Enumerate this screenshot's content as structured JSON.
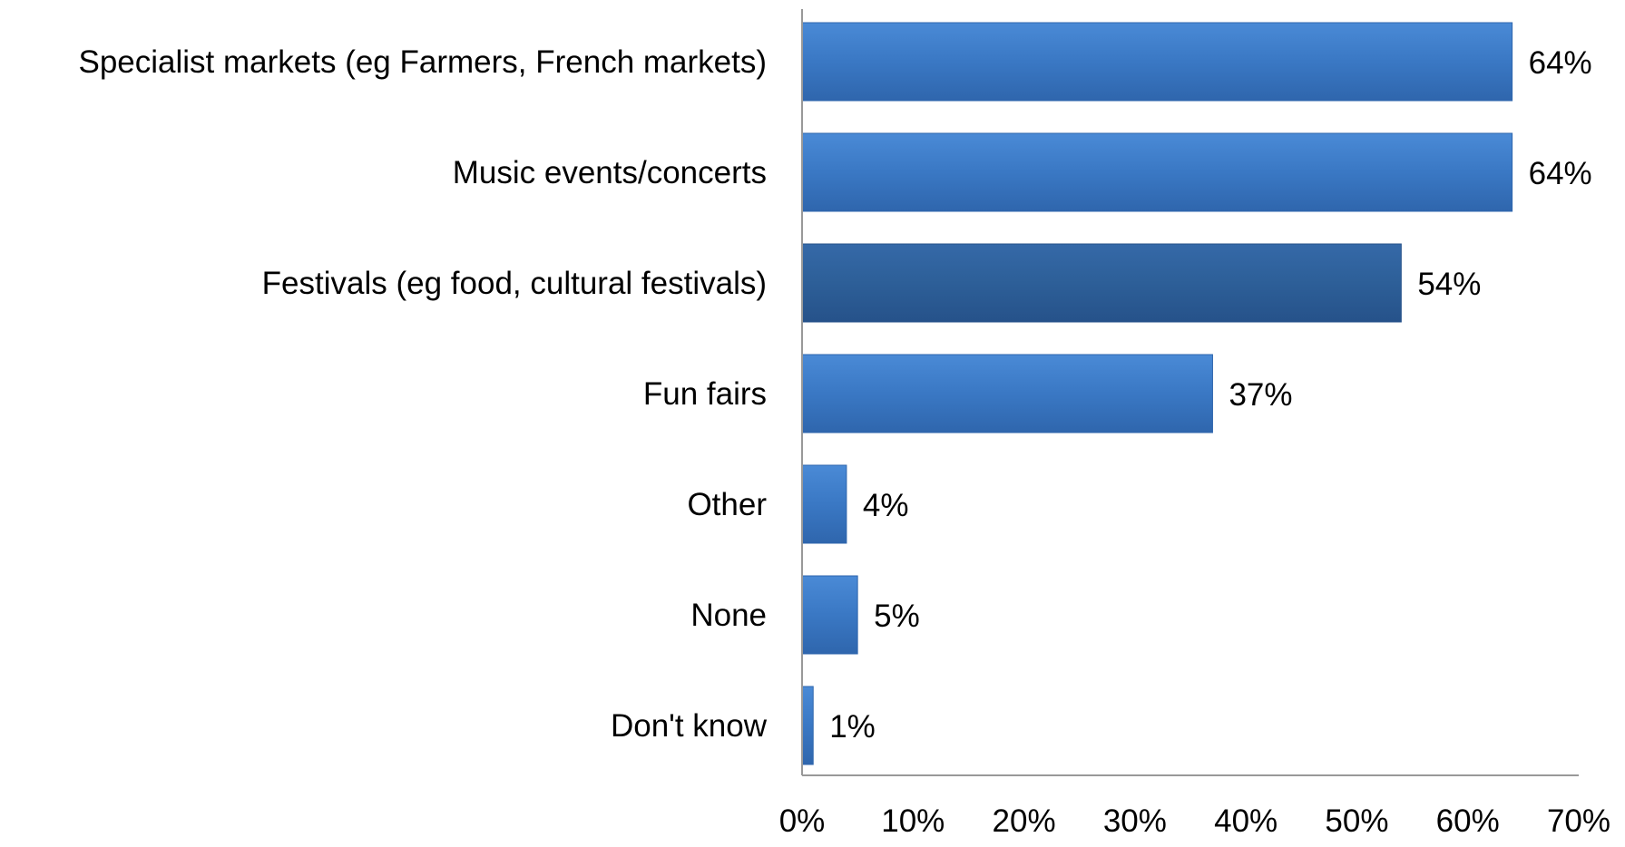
{
  "chart_data": {
    "type": "bar",
    "orientation": "horizontal",
    "categories": [
      "Specialist markets (eg Farmers, French markets)",
      "Music events/concerts",
      "Festivals (eg food, cultural festivals)",
      "Fun fairs",
      "Other",
      "None",
      "Don't know"
    ],
    "values": [
      64,
      64,
      54,
      37,
      4,
      5,
      1
    ],
    "value_labels": [
      "64%",
      "64%",
      "54%",
      "37%",
      "4%",
      "5%",
      "1%"
    ],
    "value_unit": "%",
    "xlim": [
      0,
      70
    ],
    "x_ticks": [
      0,
      10,
      20,
      30,
      40,
      50,
      60,
      70
    ],
    "x_tick_labels": [
      "0%",
      "10%",
      "20%",
      "30%",
      "40%",
      "50%",
      "60%",
      "70%"
    ],
    "title": "",
    "xlabel": "",
    "ylabel": "",
    "grid": false,
    "legend": "none",
    "colors": {
      "bar": "#3a78c4",
      "bar_highlight": "#2d5f98",
      "axis": "#999999",
      "text": "#000000"
    },
    "highlight_index": 2
  }
}
